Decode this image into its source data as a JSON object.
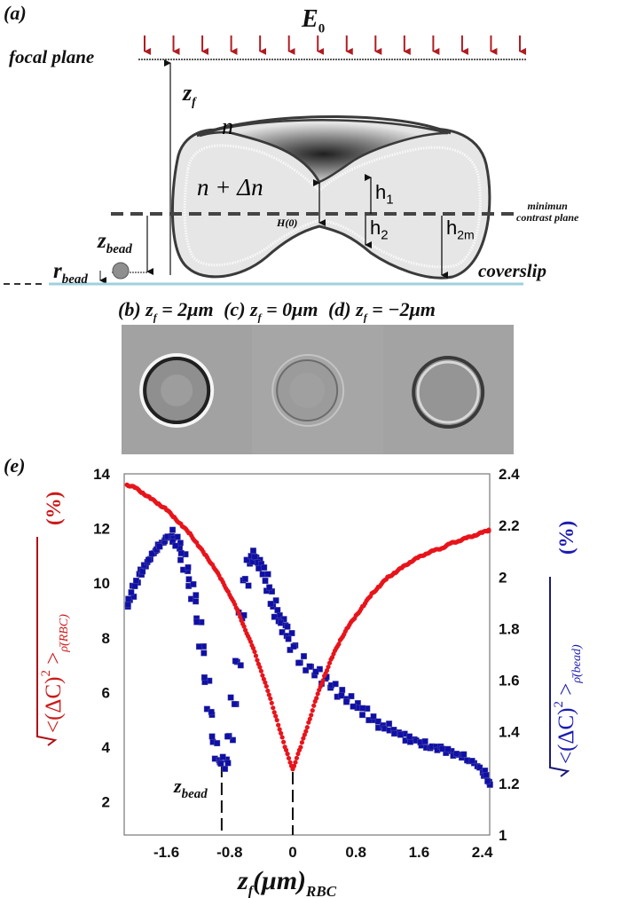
{
  "figure": {
    "panel_a": {
      "label": "(a)",
      "field_label": "E",
      "field_subscript": "0",
      "focal_plane_label": "focal plane",
      "zf_label": "z",
      "zf_subscript": "f",
      "medium_index_label": "n",
      "cell_index_label": "n + Δn",
      "h1_label": "h",
      "h1_subscript": "1",
      "h2_label": "h",
      "h2_subscript": "2",
      "h2m_label": "h",
      "h2m_subscript": "2m",
      "H0_label": "H(0)",
      "min_contrast_label_line1": "minimun",
      "min_contrast_label_line2": "contrast plane",
      "zbead_label": "z",
      "zbead_subscript": "bead",
      "rbead_label": "r",
      "rbead_subscript": "bead",
      "coverslip_label": "coverslip",
      "arrow_color": "#b01c22",
      "coverslip_color": "#9fd1dc",
      "arrow_count": 14
    },
    "panel_b": {
      "label": "(b)",
      "eq": "z",
      "sub": "f",
      "value": " = 2μm"
    },
    "panel_c": {
      "label": "(c)",
      "eq": "z",
      "sub": "f",
      "value": " = 0μm"
    },
    "panel_d": {
      "label": "(d)",
      "eq": "z",
      "sub": "f",
      "value": " = −2μm"
    },
    "panel_e": {
      "label": "(e)"
    }
  },
  "chart_data": {
    "type": "scatter",
    "panel": "(e)",
    "title": "",
    "xlabel": "z_f (μm)_RBC",
    "ylabel_left": "√<(ΔC)²>_ρ(RBC) (%)",
    "ylabel_right": "√<(ΔC)²>_ρ(bead) (%)",
    "x_ticks": [
      -1.6,
      -0.8,
      0,
      0.8,
      1.6,
      2.4
    ],
    "y_left_ticks": [
      2,
      4,
      6,
      8,
      10,
      12,
      14
    ],
    "y_right_ticks": [
      1,
      1.2,
      1.4,
      1.6,
      1.8,
      2,
      2.2,
      2.4
    ],
    "xlim": [
      -2.1,
      2.5
    ],
    "ylim_left": [
      0.8,
      14
    ],
    "ylim_right": [
      1.0,
      2.4
    ],
    "grid": false,
    "annotations": [
      {
        "text": "z_bead",
        "x": -0.9,
        "style": "dashed vertical line"
      },
      {
        "text": "",
        "x": 0,
        "style": "dashed vertical line"
      }
    ],
    "series": [
      {
        "name": "RBC contrast (left axis)",
        "axis": "left",
        "color": "#e8141b",
        "marker": "circle",
        "x": [
          -2.1,
          -2.0,
          -1.9,
          -1.8,
          -1.7,
          -1.6,
          -1.5,
          -1.4,
          -1.3,
          -1.2,
          -1.1,
          -1.0,
          -0.9,
          -0.8,
          -0.7,
          -0.6,
          -0.5,
          -0.4,
          -0.3,
          -0.2,
          -0.1,
          0.0,
          0.1,
          0.2,
          0.3,
          0.4,
          0.5,
          0.6,
          0.7,
          0.8,
          0.9,
          1.0,
          1.1,
          1.2,
          1.3,
          1.4,
          1.5,
          1.6,
          1.7,
          1.8,
          1.9,
          2.0,
          2.1,
          2.2,
          2.3,
          2.4,
          2.5
        ],
        "values": [
          13.6,
          13.5,
          13.3,
          13.1,
          12.9,
          12.7,
          12.4,
          12.1,
          11.8,
          11.4,
          11.0,
          10.6,
          10.1,
          9.6,
          9.0,
          8.3,
          7.6,
          6.8,
          5.9,
          5.0,
          4.0,
          3.2,
          4.0,
          4.9,
          5.8,
          6.6,
          7.3,
          7.9,
          8.4,
          8.8,
          9.2,
          9.6,
          9.9,
          10.2,
          10.4,
          10.6,
          10.8,
          10.95,
          11.1,
          11.2,
          11.3,
          11.45,
          11.55,
          11.65,
          11.75,
          11.85,
          11.95
        ]
      },
      {
        "name": "Bead contrast (right axis)",
        "axis": "right",
        "color": "#0f0fa8",
        "marker": "square",
        "x": [
          -2.1,
          -2.05,
          -2.0,
          -1.95,
          -1.9,
          -1.85,
          -1.8,
          -1.75,
          -1.7,
          -1.65,
          -1.6,
          -1.55,
          -1.5,
          -1.45,
          -1.4,
          -1.35,
          -1.3,
          -1.25,
          -1.2,
          -1.15,
          -1.1,
          -1.05,
          -1.0,
          -0.95,
          -0.9,
          -0.85,
          -0.8,
          -0.75,
          -0.7,
          -0.65,
          -0.6,
          -0.55,
          -0.5,
          -0.45,
          -0.4,
          -0.35,
          -0.3,
          -0.25,
          -0.2,
          -0.15,
          -0.1,
          -0.05,
          0.0,
          0.1,
          0.2,
          0.3,
          0.4,
          0.5,
          0.6,
          0.7,
          0.8,
          0.9,
          1.0,
          1.1,
          1.2,
          1.3,
          1.4,
          1.5,
          1.6,
          1.7,
          1.8,
          1.9,
          2.0,
          2.1,
          2.2,
          2.3,
          2.4,
          2.45,
          2.5
        ],
        "values": [
          1.9,
          1.93,
          1.97,
          2.0,
          2.03,
          2.06,
          2.08,
          2.1,
          2.12,
          2.13,
          2.15,
          2.17,
          2.15,
          2.12,
          2.08,
          2.03,
          1.98,
          1.92,
          1.83,
          1.72,
          1.6,
          1.48,
          1.37,
          1.29,
          1.27,
          1.29,
          1.38,
          1.52,
          1.67,
          1.85,
          1.98,
          2.06,
          2.09,
          2.07,
          2.04,
          2.0,
          1.95,
          1.9,
          1.86,
          1.83,
          1.8,
          1.77,
          1.73,
          1.68,
          1.65,
          1.63,
          1.6,
          1.58,
          1.55,
          1.53,
          1.5,
          1.48,
          1.45,
          1.43,
          1.42,
          1.4,
          1.38,
          1.37,
          1.36,
          1.35,
          1.34,
          1.33,
          1.32,
          1.31,
          1.3,
          1.28,
          1.25,
          1.22,
          1.2
        ]
      }
    ]
  }
}
